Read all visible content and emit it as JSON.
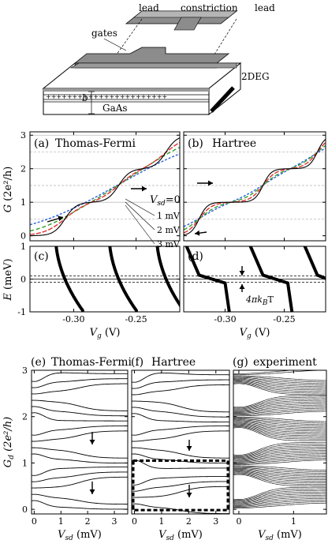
{
  "schematic": {
    "labels": {
      "lead_left": "lead",
      "constriction": "constriction",
      "lead_right": "lead",
      "gates": "gates",
      "twodeg": "2DEG",
      "b": "b",
      "gaas": "GaAs",
      "donors": "+++++++++++++++++++++++"
    }
  },
  "chart_data": [
    {
      "id": "a",
      "type": "line",
      "panel_label": "(a)",
      "title": "Thomas-Fermi",
      "xlabel": "",
      "ylabel": "G (2e²/h)",
      "xlim": [
        -0.335,
        -0.215
      ],
      "ylim": [
        -0.15,
        3.1
      ],
      "yticks": [
        0,
        1,
        2,
        3
      ],
      "grid_solid": [
        1,
        2,
        3
      ],
      "grid_dashed": [
        0.5,
        1.5,
        2.5
      ],
      "steps": [
        -0.307,
        -0.264,
        -0.226
      ],
      "series": [
        {
          "name": "Vsd=0",
          "label": "0",
          "color": "#000000",
          "width": 0.0045
        },
        {
          "name": "Vsd=1 mV",
          "label": "1 mV",
          "color": "#e03030",
          "width": 0.0085
        },
        {
          "name": "Vsd=2 mV",
          "label": "2 mV",
          "color": "#2ea02e",
          "width": 0.015
        },
        {
          "name": "Vsd=3 mV",
          "label": "3 mV",
          "color": "#2f5fe0",
          "width": 0.026
        }
      ],
      "legend_prefix": "V",
      "legend_sub": "sd",
      "legend_eq": "=0",
      "legend_items": [
        "1 mV",
        "2 mV",
        "3 mV"
      ]
    },
    {
      "id": "b",
      "type": "line",
      "panel_label": "(b)",
      "title": "Hartree",
      "xlim": [
        -0.335,
        -0.215
      ],
      "ylim": [
        -0.15,
        3.1
      ],
      "grid_solid": [
        1,
        2,
        3
      ],
      "grid_dashed": [
        0.5,
        1.5,
        2.5
      ],
      "steps": [
        -0.322,
        -0.268,
        -0.222
      ],
      "plateau_x": [
        -0.296,
        -0.255
      ],
      "series": [
        {
          "name": "Vsd=0",
          "color": "#000000",
          "width": 0.0035
        },
        {
          "name": "Vsd=1 mV",
          "color": "#e03030",
          "width": 0.0055
        },
        {
          "name": "Vsd=2 mV",
          "color": "#2ea02e",
          "width": 0.0085
        },
        {
          "name": "Vsd=3 mV",
          "color": "#2f5fe0",
          "width": 0.013
        }
      ]
    },
    {
      "id": "c",
      "type": "scatter",
      "panel_label": "(c)",
      "xlabel": "V_g (V)",
      "ylabel": "E (meV)",
      "xlim": [
        -0.335,
        -0.215
      ],
      "ylim": [
        -1,
        1
      ],
      "xticks": [
        -0.3,
        -0.25
      ],
      "xticklabels": [
        "-0.30",
        "-0.25"
      ],
      "yticks": [
        -1,
        0,
        1
      ],
      "dashed_y": [
        -0.1,
        0.1
      ],
      "branches": [
        {
          "x0": -0.307,
          "slope": -0.13
        },
        {
          "x0": -0.264,
          "slope": -0.13
        },
        {
          "x0": -0.226,
          "slope": -0.13
        }
      ]
    },
    {
      "id": "d",
      "type": "scatter",
      "panel_label": "(d)",
      "xlabel": "V_g (V)",
      "annotation": "4πk_BT",
      "xlim": [
        -0.335,
        -0.215
      ],
      "ylim": [
        -1,
        1
      ],
      "xticks": [
        -0.3,
        -0.25
      ],
      "xticklabels": [
        "-0.30",
        "-0.25"
      ],
      "dashed_y": [
        -0.1,
        0.1
      ]
    },
    {
      "id": "e",
      "type": "line",
      "panel_label": "(e)",
      "title": "Thomas-Fermi",
      "xlabel": "V_sd (mV)",
      "ylabel": "G_d (2e²/h)",
      "xlim": [
        -0.1,
        3.5
      ],
      "ylim": [
        -0.1,
        3
      ],
      "xticks": [
        0,
        1,
        2,
        3
      ],
      "yticks": [
        0,
        1,
        2,
        3
      ],
      "plateaus": [
        0.45,
        1.4,
        2.4
      ],
      "curve_count": 15
    },
    {
      "id": "f",
      "type": "line",
      "panel_label": "(f)",
      "title": "Hartree",
      "xlabel": "V_sd (mV)",
      "xlim": [
        -0.1,
        3.5
      ],
      "ylim": [
        -0.1,
        3
      ],
      "xticks": [
        0,
        1,
        2,
        3
      ],
      "plateaus": [
        0.25,
        1.4,
        2.35
      ],
      "curve_count": 15,
      "dashed_box": {
        "x": [
          -0.1,
          3.5
        ],
        "y": [
          -0.05,
          1.05
        ]
      }
    },
    {
      "id": "g",
      "type": "line",
      "panel_label": "(g)",
      "title": "experiment",
      "xlabel": "V_sd (mV)",
      "xlim": [
        -0.1,
        1.6
      ],
      "ylim": [
        -0.1,
        3
      ],
      "xticks": [
        0,
        1
      ],
      "plateaus": [
        0.0,
        0.95,
        2.0,
        2.9
      ],
      "curve_count": 70
    }
  ]
}
